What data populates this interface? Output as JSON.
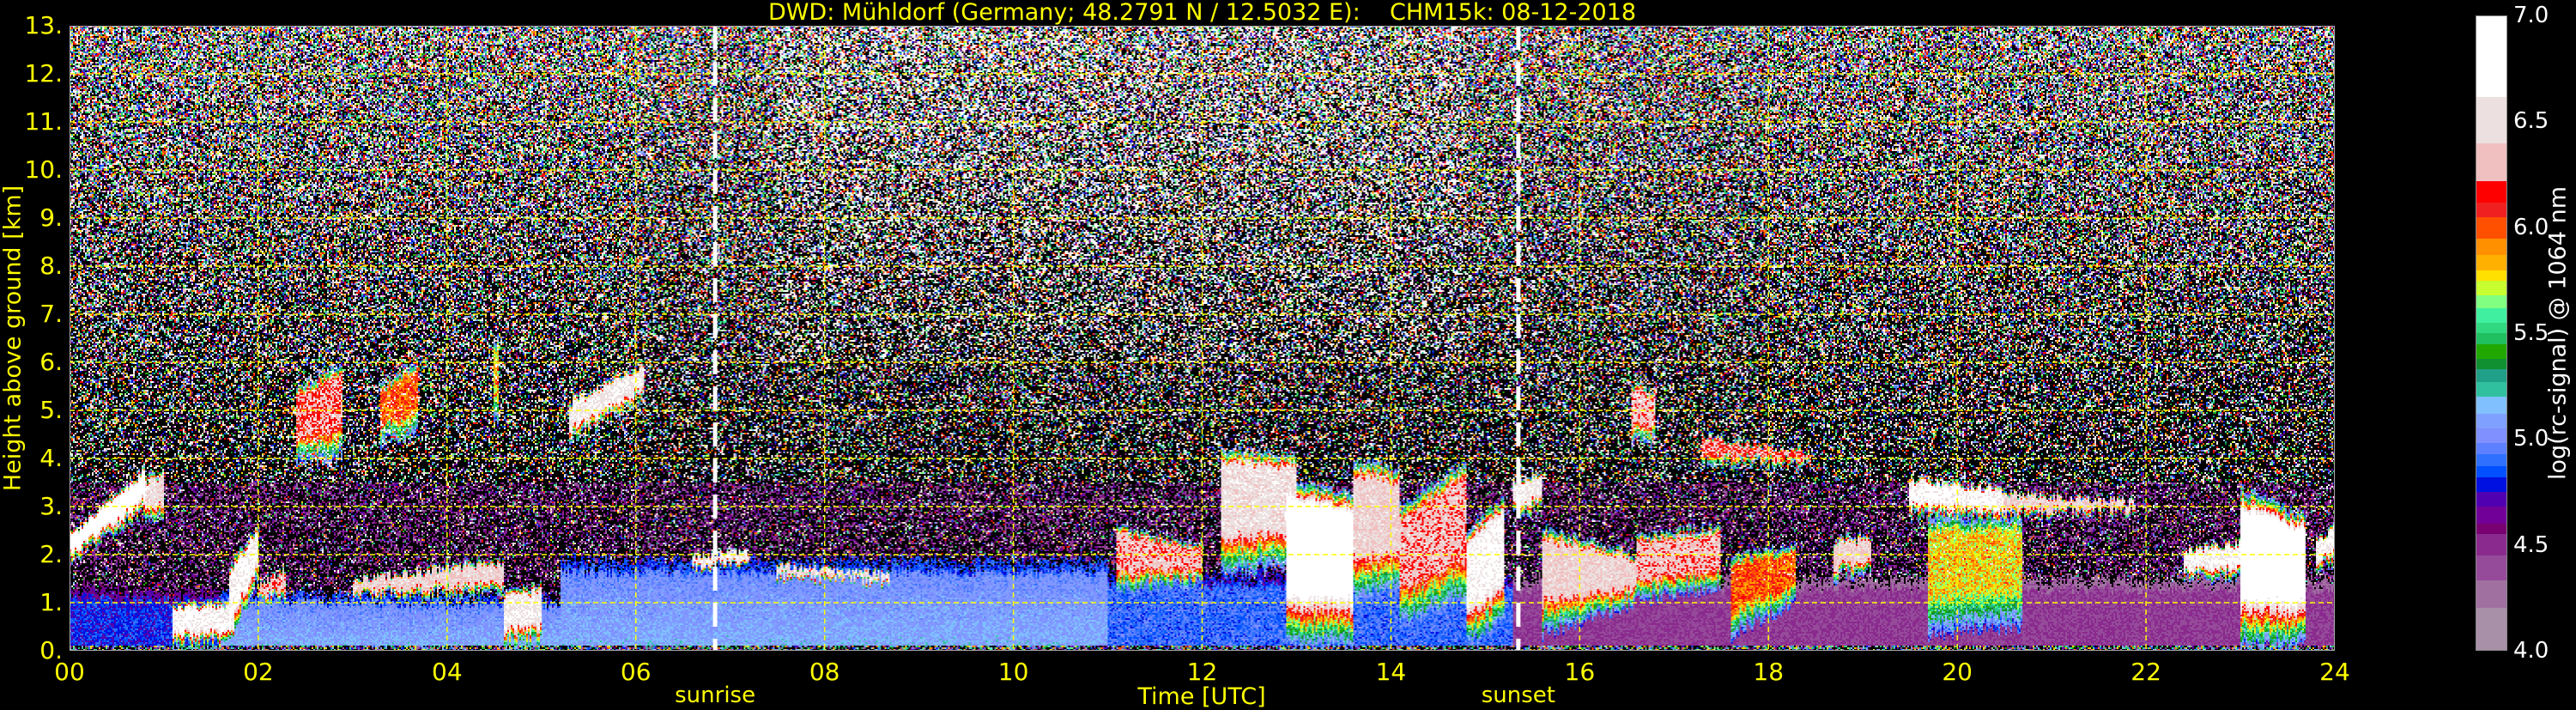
{
  "title": "DWD: Mühldorf (Germany; 48.2791 N / 12.5032 E):    CHM15k: 08-12-2018",
  "chart_data": {
    "type": "heatmap",
    "title": "DWD: Mühldorf (Germany; 48.2791 N / 12.5032 E):    CHM15k: 08-12-2018",
    "xlabel": "Time [UTC]",
    "ylabel": "Height above ground [km]",
    "xlim": [
      0,
      24
    ],
    "ylim": [
      0,
      13
    ],
    "x_ticks": [
      0,
      2,
      4,
      6,
      8,
      10,
      12,
      14,
      16,
      18,
      20,
      22,
      24
    ],
    "x_tick_labels": [
      "00",
      "02",
      "04",
      "06",
      "08",
      "10",
      "12",
      "14",
      "16",
      "18",
      "20",
      "22",
      "24"
    ],
    "y_ticks": [
      0,
      1,
      2,
      3,
      4,
      5,
      6,
      7,
      8,
      9,
      10,
      11,
      12,
      13
    ],
    "y_tick_labels": [
      "0.",
      "1.",
      "2.",
      "3.",
      "4.",
      "5.",
      "6.",
      "7.",
      "8.",
      "9.",
      "10.",
      "11.",
      "12.",
      "13."
    ],
    "grid": true,
    "grid_color": "#ffff00",
    "annotations": [
      {
        "label": "sunrise",
        "time": 6.84
      },
      {
        "label": "sunset",
        "time": 15.35
      }
    ],
    "colorbar": {
      "label": "log(rc-signal) @ 1064 nm",
      "range": [
        4.0,
        7.0
      ],
      "ticks": [
        "4.0",
        "4.5",
        "5.0",
        "5.5",
        "6.0",
        "6.5",
        "7.0"
      ],
      "colormap": [
        [
          4.0,
          "#a890a8"
        ],
        [
          4.2,
          "#a070a0"
        ],
        [
          4.33,
          "#954a9a"
        ],
        [
          4.45,
          "#8a2a8e"
        ],
        [
          4.55,
          "#780070"
        ],
        [
          4.6,
          "#700098"
        ],
        [
          4.68,
          "#5000b0"
        ],
        [
          4.75,
          "#0010e0"
        ],
        [
          4.82,
          "#0050ff"
        ],
        [
          4.87,
          "#3070ff"
        ],
        [
          4.93,
          "#5c80ff"
        ],
        [
          4.98,
          "#8090ff"
        ],
        [
          5.05,
          "#80a0ff"
        ],
        [
          5.12,
          "#80c0ff"
        ],
        [
          5.2,
          "#30c0a0"
        ],
        [
          5.27,
          "#20a088"
        ],
        [
          5.33,
          "#109030"
        ],
        [
          5.38,
          "#20a800"
        ],
        [
          5.45,
          "#20c060"
        ],
        [
          5.5,
          "#30d880"
        ],
        [
          5.55,
          "#40f0a0"
        ],
        [
          5.62,
          "#80ff80"
        ],
        [
          5.68,
          "#c8ff30"
        ],
        [
          5.75,
          "#ffe000"
        ],
        [
          5.8,
          "#ffb000"
        ],
        [
          5.87,
          "#ff9000"
        ],
        [
          5.95,
          "#ff5000"
        ],
        [
          6.05,
          "#f02020"
        ],
        [
          6.12,
          "#ff0000"
        ],
        [
          6.22,
          "#f0c0c0"
        ],
        [
          6.4,
          "#ece0e0"
        ],
        [
          6.62,
          "#ffffff"
        ]
      ]
    },
    "aerosol_layers": [
      {
        "t": [
          0,
          1.6
        ],
        "top": [
          1.3,
          1.2
        ],
        "level": 4.75
      },
      {
        "t": [
          1.6,
          5.2
        ],
        "top": [
          1.2,
          1.1
        ],
        "level": 5.0
      },
      {
        "t": [
          5.2,
          11
        ],
        "top": [
          1.9,
          1.9
        ],
        "level": 5.0
      },
      {
        "t": [
          11,
          15.3
        ],
        "top": [
          1.6,
          1.6
        ],
        "level": 4.85
      },
      {
        "t": [
          15.3,
          24
        ],
        "top": [
          1.5,
          1.5
        ],
        "level": 4.4
      }
    ],
    "cloud_layers": [
      {
        "t": [
          0,
          0.8
        ],
        "base": [
          1.8,
          2.9
        ],
        "top": [
          2.4,
          3.8
        ],
        "level": 6.8
      },
      {
        "t": [
          0.8,
          1.0
        ],
        "base": [
          2.6,
          2.8
        ],
        "top": [
          3.6,
          3.7
        ],
        "level": 6.5
      },
      {
        "t": [
          1.1,
          1.75
        ],
        "base": [
          0.1,
          0.1
        ],
        "top": [
          1.0,
          1.0
        ],
        "level": 6.7
      },
      {
        "t": [
          1.7,
          2.0
        ],
        "base": [
          0.1,
          1.5
        ],
        "top": [
          1.8,
          2.6
        ],
        "level": 6.7
      },
      {
        "t": [
          2.0,
          2.3
        ],
        "base": [
          1.0,
          1.1
        ],
        "top": [
          1.4,
          1.7
        ],
        "level": 6.3
      },
      {
        "t": [
          2.4,
          2.9
        ],
        "base": [
          3.8,
          4.0
        ],
        "top": [
          5.5,
          6.0
        ],
        "level": 6.2
      },
      {
        "t": [
          3.3,
          3.7
        ],
        "base": [
          4.3,
          4.5
        ],
        "top": [
          5.5,
          6.1
        ],
        "level": 6.0
      },
      {
        "t": [
          4.5,
          4.55
        ],
        "base": [
          4.7,
          4.7
        ],
        "top": [
          6.5,
          6.5
        ],
        "level": 5.8
      },
      {
        "t": [
          5.3,
          6.1
        ],
        "base": [
          4.3,
          5.3
        ],
        "top": [
          5.2,
          6.0
        ],
        "level": 6.6
      },
      {
        "t": [
          3.0,
          4.6
        ],
        "base": [
          1.1,
          1.2
        ],
        "top": [
          1.5,
          1.9
        ],
        "level": 6.4
      },
      {
        "t": [
          4.6,
          5.0
        ],
        "base": [
          0.1,
          0.1
        ],
        "top": [
          1.2,
          1.4
        ],
        "level": 6.6
      },
      {
        "t": [
          6.6,
          7.2
        ],
        "base": [
          1.7,
          1.8
        ],
        "top": [
          2.0,
          2.1
        ],
        "level": 6.6
      },
      {
        "t": [
          7.5,
          8.7
        ],
        "base": [
          1.5,
          1.4
        ],
        "top": [
          1.8,
          1.6
        ],
        "level": 6.5
      },
      {
        "t": [
          11.1,
          12.0
        ],
        "base": [
          1.2,
          1.4
        ],
        "top": [
          2.6,
          2.2
        ],
        "level": 6.3
      },
      {
        "t": [
          12.2,
          13.0
        ],
        "base": [
          1.5,
          1.8
        ],
        "top": [
          4.2,
          4.1
        ],
        "level": 6.5
      },
      {
        "t": [
          12.9,
          13.6
        ],
        "base": [
          0.05,
          0.05
        ],
        "top": [
          3.6,
          3.3
        ],
        "level": 6.9
      },
      {
        "t": [
          13.6,
          14.1
        ],
        "base": [
          1.0,
          1.2
        ],
        "top": [
          4.0,
          3.8
        ],
        "level": 6.4
      },
      {
        "t": [
          14.1,
          14.8
        ],
        "base": [
          0.5,
          1.0
        ],
        "top": [
          3.0,
          4.0
        ],
        "level": 6.3
      },
      {
        "t": [
          14.8,
          15.2
        ],
        "base": [
          0.1,
          0.5
        ],
        "top": [
          2.5,
          3.2
        ],
        "level": 6.7
      },
      {
        "t": [
          15.3,
          15.6
        ],
        "base": [
          2.8,
          2.9
        ],
        "top": [
          3.6,
          3.7
        ],
        "level": 6.6
      },
      {
        "t": [
          15.6,
          16.6
        ],
        "base": [
          0.3,
          1.0
        ],
        "top": [
          2.6,
          2.0
        ],
        "level": 6.4
      },
      {
        "t": [
          16.6,
          17.5
        ],
        "base": [
          1.0,
          1.3
        ],
        "top": [
          2.4,
          2.6
        ],
        "level": 6.3
      },
      {
        "t": [
          16.55,
          16.8
        ],
        "base": [
          4.3,
          4.3
        ],
        "top": [
          5.6,
          5.4
        ],
        "level": 6.3
      },
      {
        "t": [
          17.3,
          18.5
        ],
        "base": [
          3.9,
          3.9
        ],
        "top": [
          4.5,
          4.1
        ],
        "level": 6.2
      },
      {
        "t": [
          17.6,
          18.3
        ],
        "base": [
          0.3,
          1.0
        ],
        "top": [
          2.0,
          2.2
        ],
        "level": 6.0
      },
      {
        "t": [
          18.7,
          19.1
        ],
        "base": [
          1.5,
          1.6
        ],
        "top": [
          2.3,
          2.4
        ],
        "level": 6.4
      },
      {
        "t": [
          19.5,
          20.5
        ],
        "base": [
          2.8,
          2.7
        ],
        "top": [
          3.6,
          3.4
        ],
        "level": 6.7
      },
      {
        "t": [
          19.7,
          20.7
        ],
        "base": [
          0.3,
          0.5
        ],
        "top": [
          2.8,
          2.8
        ],
        "level": 5.8
      },
      {
        "t": [
          20.5,
          21.9
        ],
        "base": [
          2.8,
          2.9
        ],
        "top": [
          3.3,
          3.1
        ],
        "level": 6.4
      },
      {
        "t": [
          22.4,
          23.0
        ],
        "base": [
          1.5,
          1.5
        ],
        "top": [
          2.1,
          2.3
        ],
        "level": 6.7
      },
      {
        "t": [
          23.0,
          23.7
        ],
        "base": [
          0.05,
          0.05
        ],
        "top": [
          3.4,
          2.8
        ],
        "level": 6.8
      },
      {
        "t": [
          23.8,
          24.0
        ],
        "base": [
          1.7,
          1.8
        ],
        "top": [
          2.3,
          2.6
        ],
        "level": 6.7
      }
    ]
  }
}
